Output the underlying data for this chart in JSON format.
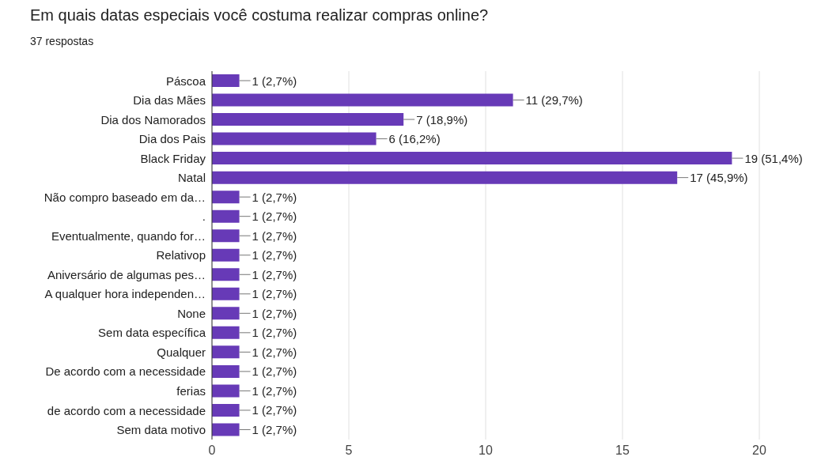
{
  "chart_data": {
    "type": "bar",
    "orientation": "horizontal",
    "title": "Em quais datas especiais você costuma realizar compras online?",
    "subtitle": "37 respostas",
    "categories": [
      "Páscoa",
      "Dia das Mães",
      "Dia dos Namorados",
      "Dia dos Pais",
      "Black Friday",
      "Natal",
      "Não compro baseado em da…",
      ".",
      "Eventualmente, quando for…",
      "Relativop",
      "Aniversário de algumas pes…",
      "A qualquer hora independen…",
      "None",
      "Sem data específica",
      "Qualquer",
      "De acordo com a necessidade",
      "ferias",
      "de acordo com a necessidade",
      "Sem data motivo"
    ],
    "values": [
      1,
      11,
      7,
      6,
      19,
      17,
      1,
      1,
      1,
      1,
      1,
      1,
      1,
      1,
      1,
      1,
      1,
      1,
      1
    ],
    "value_labels": [
      "1 (2,7%)",
      "11 (29,7%)",
      "7 (18,9%)",
      "6 (16,2%)",
      "19 (51,4%)",
      "17 (45,9%)",
      "1 (2,7%)",
      "1 (2,7%)",
      "1 (2,7%)",
      "1 (2,7%)",
      "1 (2,7%)",
      "1 (2,7%)",
      "1 (2,7%)",
      "1 (2,7%)",
      "1 (2,7%)",
      "1 (2,7%)",
      "1 (2,7%)",
      "1 (2,7%)",
      "1 (2,7%)"
    ],
    "color": "#673ab7",
    "xlim": [
      0,
      20
    ],
    "xticks": [
      0,
      5,
      10,
      15,
      20
    ],
    "grid": "x",
    "legend": false
  }
}
